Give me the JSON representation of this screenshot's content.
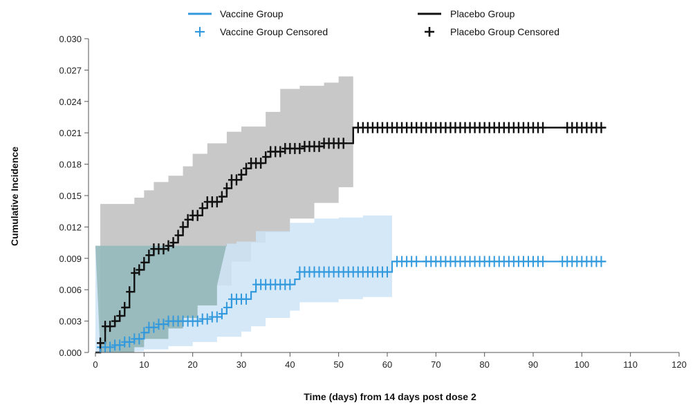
{
  "chart_data": {
    "type": "line",
    "title": "",
    "xlabel": "Time (days) from 14 days post dose 2",
    "ylabel": "Cumulative Incidence",
    "xlim": [
      0,
      120
    ],
    "ylim": [
      0,
      0.03
    ],
    "x_ticks": [
      0,
      10,
      20,
      30,
      40,
      50,
      60,
      70,
      80,
      90,
      100,
      110,
      120
    ],
    "y_ticks": [
      "0.000",
      "0.003",
      "0.006",
      "0.009",
      "0.012",
      "0.015",
      "0.018",
      "0.021",
      "0.024",
      "0.027",
      "0.030"
    ],
    "grid": false,
    "legend_position": "top",
    "legend": [
      {
        "label": "Vaccine Group",
        "kind": "line",
        "color": "#3399dd"
      },
      {
        "label": "Placebo Group",
        "kind": "line",
        "color": "#111111"
      },
      {
        "label": "Vaccine Group Censored",
        "kind": "cross",
        "color": "#3399dd"
      },
      {
        "label": "Placebo Group Censored",
        "kind": "cross",
        "color": "#111111"
      }
    ],
    "series": [
      {
        "name": "Vaccine Group",
        "color": "#3399dd",
        "band_color": "#cce4f7",
        "steps": [
          [
            0,
            0.0
          ],
          [
            1,
            0.0005
          ],
          [
            4,
            0.0007
          ],
          [
            6,
            0.001
          ],
          [
            8,
            0.0013
          ],
          [
            10,
            0.0019
          ],
          [
            11,
            0.0024
          ],
          [
            13,
            0.0027
          ],
          [
            15,
            0.003
          ],
          [
            22,
            0.0032
          ],
          [
            24,
            0.0034
          ],
          [
            26,
            0.0037
          ],
          [
            27,
            0.0043
          ],
          [
            28,
            0.0051
          ],
          [
            32,
            0.0058
          ],
          [
            33,
            0.0065
          ],
          [
            41,
            0.007
          ],
          [
            42,
            0.0077
          ],
          [
            61,
            0.0087
          ],
          [
            105,
            0.0087
          ]
        ],
        "ci_upper": [
          [
            0,
            0.0102
          ],
          [
            5,
            0.0102
          ],
          [
            10,
            0.0102
          ],
          [
            15,
            0.0102
          ],
          [
            20,
            0.0102
          ],
          [
            25,
            0.0102
          ],
          [
            27,
            0.0104
          ],
          [
            29,
            0.0106
          ],
          [
            33,
            0.0116
          ],
          [
            40,
            0.0124
          ],
          [
            45,
            0.0128
          ],
          [
            50,
            0.0129
          ],
          [
            55,
            0.0131
          ],
          [
            61,
            0.0134
          ]
        ],
        "ci_lower": [
          [
            0,
            0.0
          ],
          [
            5,
            0.0001
          ],
          [
            10,
            0.0003
          ],
          [
            15,
            0.0006
          ],
          [
            20,
            0.001
          ],
          [
            25,
            0.0015
          ],
          [
            30,
            0.002
          ],
          [
            32,
            0.0025
          ],
          [
            35,
            0.0033
          ],
          [
            40,
            0.004
          ],
          [
            42,
            0.0048
          ],
          [
            50,
            0.0051
          ],
          [
            55,
            0.0053
          ],
          [
            61,
            0.0056
          ]
        ],
        "censored": [
          1,
          2,
          3,
          4,
          5,
          6,
          7,
          8,
          9,
          10,
          11,
          12,
          13,
          14,
          15,
          16,
          17,
          18,
          19,
          20,
          21,
          22,
          23,
          24,
          25,
          26,
          27,
          28,
          29,
          30,
          31,
          33,
          34,
          35,
          36,
          37,
          38,
          39,
          40,
          42,
          43,
          44,
          45,
          46,
          47,
          48,
          49,
          50,
          51,
          52,
          53,
          54,
          55,
          56,
          57,
          58,
          59,
          60,
          62,
          63,
          64,
          65,
          66,
          68,
          69,
          70,
          71,
          72,
          73,
          74,
          75,
          76,
          77,
          78,
          79,
          80,
          81,
          82,
          83,
          84,
          85,
          86,
          87,
          88,
          89,
          90,
          91,
          92,
          96,
          97,
          98,
          99,
          100,
          101,
          102,
          103,
          104
        ]
      },
      {
        "name": "Placebo Group",
        "color": "#111111",
        "band_color": "#c8c8c8",
        "steps": [
          [
            0,
            0.0
          ],
          [
            1,
            0.0009
          ],
          [
            2,
            0.0025
          ],
          [
            4,
            0.003
          ],
          [
            5,
            0.0035
          ],
          [
            6,
            0.0043
          ],
          [
            7,
            0.0058
          ],
          [
            8,
            0.0076
          ],
          [
            9,
            0.0079
          ],
          [
            10,
            0.0086
          ],
          [
            11,
            0.0093
          ],
          [
            12,
            0.0099
          ],
          [
            15,
            0.0102
          ],
          [
            16,
            0.0105
          ],
          [
            17,
            0.0112
          ],
          [
            18,
            0.012
          ],
          [
            19,
            0.0127
          ],
          [
            20,
            0.0131
          ],
          [
            22,
            0.0138
          ],
          [
            23,
            0.0144
          ],
          [
            26,
            0.0149
          ],
          [
            27,
            0.0157
          ],
          [
            28,
            0.0165
          ],
          [
            30,
            0.017
          ],
          [
            31,
            0.0176
          ],
          [
            32,
            0.0181
          ],
          [
            35,
            0.0187
          ],
          [
            36,
            0.0192
          ],
          [
            39,
            0.0195
          ],
          [
            43,
            0.0197
          ],
          [
            47,
            0.02
          ],
          [
            53,
            0.0215
          ],
          [
            105,
            0.0215
          ]
        ],
        "ci_upper": [
          [
            1,
            0.0142
          ],
          [
            5,
            0.0142
          ],
          [
            7,
            0.0142
          ],
          [
            8,
            0.0148
          ],
          [
            10,
            0.0155
          ],
          [
            12,
            0.0163
          ],
          [
            15,
            0.0169
          ],
          [
            18,
            0.0178
          ],
          [
            20,
            0.019
          ],
          [
            23,
            0.02
          ],
          [
            27,
            0.0211
          ],
          [
            30,
            0.0216
          ],
          [
            35,
            0.023
          ],
          [
            38,
            0.0252
          ],
          [
            42,
            0.0255
          ],
          [
            47,
            0.0258
          ],
          [
            50,
            0.0264
          ],
          [
            53,
            0.0273
          ]
        ],
        "ci_lower": [
          [
            1,
            0.0
          ],
          [
            5,
            0.0
          ],
          [
            8,
            0.0005
          ],
          [
            10,
            0.0013
          ],
          [
            15,
            0.0023
          ],
          [
            18,
            0.0033
          ],
          [
            21,
            0.0045
          ],
          [
            25,
            0.0064
          ],
          [
            28,
            0.0087
          ],
          [
            32,
            0.0105
          ],
          [
            35,
            0.0115
          ],
          [
            40,
            0.0128
          ],
          [
            45,
            0.0143
          ],
          [
            50,
            0.0158
          ],
          [
            53,
            0.017
          ]
        ],
        "censored": [
          1,
          2,
          3,
          4,
          5,
          6,
          7,
          8,
          9,
          10,
          11,
          12,
          13,
          14,
          15,
          16,
          17,
          18,
          19,
          20,
          21,
          22,
          23,
          24,
          25,
          26,
          27,
          28,
          29,
          30,
          31,
          32,
          33,
          34,
          35,
          36,
          37,
          38,
          39,
          40,
          41,
          42,
          43,
          44,
          45,
          46,
          47,
          48,
          49,
          50,
          51,
          54,
          55,
          56,
          57,
          58,
          59,
          60,
          61,
          62,
          63,
          64,
          65,
          66,
          67,
          68,
          69,
          70,
          71,
          72,
          73,
          74,
          75,
          76,
          77,
          78,
          79,
          80,
          81,
          82,
          83,
          84,
          85,
          86,
          87,
          88,
          89,
          90,
          91,
          92,
          97,
          98,
          99,
          100,
          101,
          102,
          103,
          104
        ]
      }
    ]
  }
}
